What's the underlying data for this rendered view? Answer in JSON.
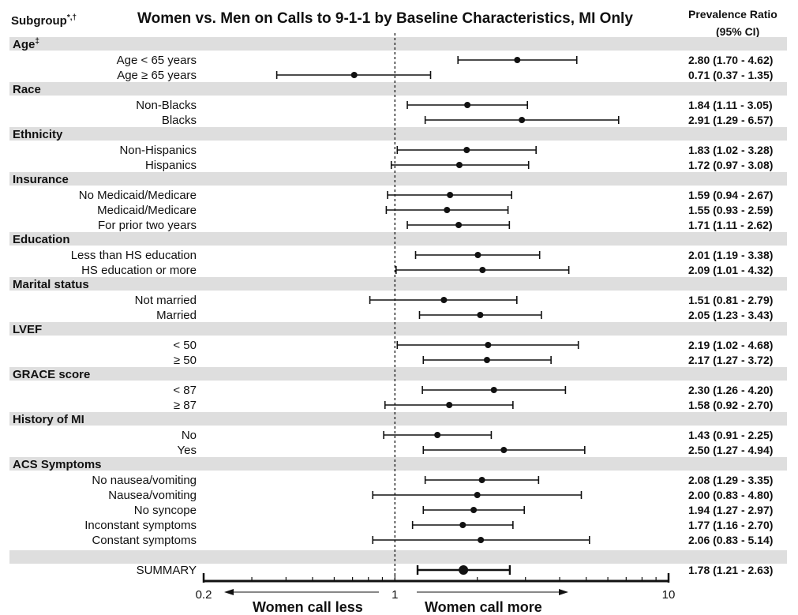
{
  "chart_data": {
    "type": "forest",
    "title": "Women vs. Men on Calls to 9-1-1 by Baseline Characteristics, MI Only",
    "column_headers": {
      "subgroup": "Subgroup",
      "subgroup_marks": "*,†",
      "ratio_line1": "Prevalence Ratio",
      "ratio_line2": "(95% CI)"
    },
    "x_scale": "log",
    "xlim": [
      0.2,
      10
    ],
    "x_ticks": [
      {
        "value": 0.2,
        "label": "0.2"
      },
      {
        "value": 1,
        "label": "1"
      },
      {
        "value": 10,
        "label": "10"
      }
    ],
    "reference_value": 1,
    "direction_labels": {
      "left": "Women call less",
      "right": "Women call more"
    },
    "groups": [
      {
        "name": "Age",
        "mark": "‡",
        "rows": [
          {
            "label": "Age < 65 years",
            "pr": 2.8,
            "lo": 1.7,
            "hi": 4.62,
            "text": "2.80 (1.70 - 4.62)"
          },
          {
            "label": "Age ≥ 65 years",
            "pr": 0.71,
            "lo": 0.37,
            "hi": 1.35,
            "text": "0.71 (0.37 - 1.35)"
          }
        ]
      },
      {
        "name": "Race",
        "mark": "",
        "rows": [
          {
            "label": "Non-Blacks",
            "pr": 1.84,
            "lo": 1.11,
            "hi": 3.05,
            "text": "1.84 (1.11 - 3.05)"
          },
          {
            "label": "Blacks",
            "pr": 2.91,
            "lo": 1.29,
            "hi": 6.57,
            "text": "2.91 (1.29 - 6.57)"
          }
        ]
      },
      {
        "name": "Ethnicity",
        "mark": "",
        "rows": [
          {
            "label": "Non-Hispanics",
            "pr": 1.83,
            "lo": 1.02,
            "hi": 3.28,
            "text": "1.83 (1.02 - 3.28)"
          },
          {
            "label": "Hispanics",
            "pr": 1.72,
            "lo": 0.97,
            "hi": 3.08,
            "text": "1.72 (0.97 - 3.08)"
          }
        ]
      },
      {
        "name": "Insurance",
        "mark": "",
        "rows": [
          {
            "label": "No Medicaid/Medicare",
            "pr": 1.59,
            "lo": 0.94,
            "hi": 2.67,
            "text": "1.59 (0.94 - 2.67)"
          },
          {
            "label": "Medicaid/Medicare",
            "pr": 1.55,
            "lo": 0.93,
            "hi": 2.59,
            "text": "1.55 (0.93 - 2.59)"
          },
          {
            "label": "For prior two years",
            "pr": 1.71,
            "lo": 1.11,
            "hi": 2.62,
            "text": "1.71 (1.11 - 2.62)"
          }
        ]
      },
      {
        "name": "Education",
        "mark": "",
        "rows": [
          {
            "label": "Less than HS education",
            "pr": 2.01,
            "lo": 1.19,
            "hi": 3.38,
            "text": "2.01 (1.19 - 3.38)"
          },
          {
            "label": "HS education or more",
            "pr": 2.09,
            "lo": 1.01,
            "hi": 4.32,
            "text": "2.09 (1.01 - 4.32)"
          }
        ]
      },
      {
        "name": "Marital status",
        "mark": "",
        "rows": [
          {
            "label": "Not married",
            "pr": 1.51,
            "lo": 0.81,
            "hi": 2.79,
            "text": "1.51 (0.81 - 2.79)"
          },
          {
            "label": "Married",
            "pr": 2.05,
            "lo": 1.23,
            "hi": 3.43,
            "text": "2.05 (1.23 - 3.43)"
          }
        ]
      },
      {
        "name": "LVEF",
        "mark": "",
        "rows": [
          {
            "label": "< 50",
            "pr": 2.19,
            "lo": 1.02,
            "hi": 4.68,
            "text": "2.19 (1.02 - 4.68)"
          },
          {
            "label": "≥ 50",
            "pr": 2.17,
            "lo": 1.27,
            "hi": 3.72,
            "text": "2.17 (1.27 - 3.72)"
          }
        ]
      },
      {
        "name": "GRACE score",
        "mark": "",
        "rows": [
          {
            "label": "< 87",
            "pr": 2.3,
            "lo": 1.26,
            "hi": 4.2,
            "text": "2.30 (1.26 - 4.20)"
          },
          {
            "label": "≥ 87",
            "pr": 1.58,
            "lo": 0.92,
            "hi": 2.7,
            "text": "1.58 (0.92 - 2.70)"
          }
        ]
      },
      {
        "name": "History of MI",
        "mark": "",
        "rows": [
          {
            "label": "No",
            "pr": 1.43,
            "lo": 0.91,
            "hi": 2.25,
            "text": "1.43 (0.91 - 2.25)"
          },
          {
            "label": "Yes",
            "pr": 2.5,
            "lo": 1.27,
            "hi": 4.94,
            "text": "2.50 (1.27 - 4.94)"
          }
        ]
      },
      {
        "name": "ACS Symptoms",
        "mark": "",
        "rows": [
          {
            "label": "No nausea/vomiting",
            "pr": 2.08,
            "lo": 1.29,
            "hi": 3.35,
            "text": "2.08 (1.29 - 3.35)"
          },
          {
            "label": "Nausea/vomiting",
            "pr": 2.0,
            "lo": 0.83,
            "hi": 4.8,
            "text": "2.00 (0.83 - 4.80)"
          },
          {
            "label": "No syncope",
            "pr": 1.94,
            "lo": 1.27,
            "hi": 2.97,
            "text": "1.94 (1.27 - 2.97)"
          },
          {
            "label": "Inconstant symptoms",
            "pr": 1.77,
            "lo": 1.16,
            "hi": 2.7,
            "text": "1.77 (1.16 - 2.70)"
          },
          {
            "label": "Constant symptoms",
            "pr": 2.06,
            "lo": 0.83,
            "hi": 5.14,
            "text": "2.06 (0.83 - 5.14)"
          }
        ]
      }
    ],
    "summary": {
      "label": "SUMMARY",
      "pr": 1.78,
      "lo": 1.21,
      "hi": 2.63,
      "text": "1.78 (1.21 - 2.63)"
    },
    "colors": {
      "band": "#dedede",
      "ink": "#111111"
    }
  }
}
